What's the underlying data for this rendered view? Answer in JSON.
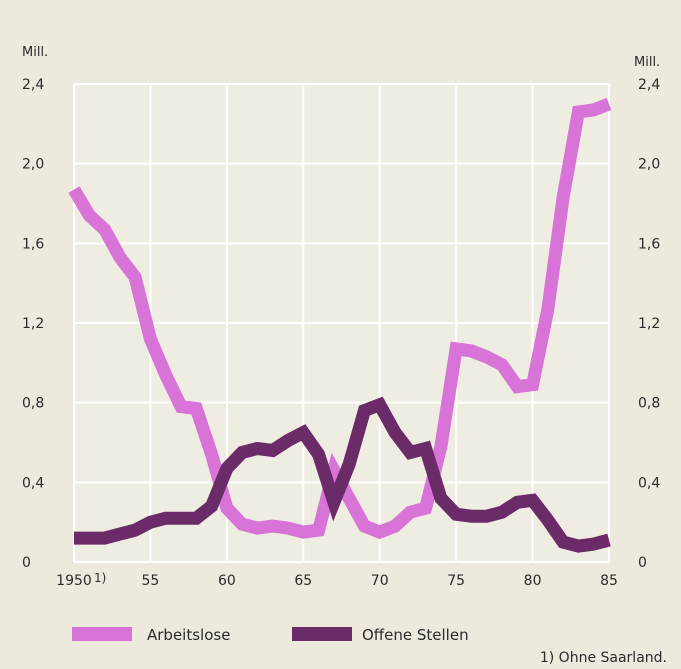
{
  "chart_data": {
    "type": "line",
    "unit_left": "Mill.",
    "unit_right": "Mill.",
    "x_tick_labels": [
      "1950",
      "55",
      "60",
      "65",
      "70",
      "75",
      "80",
      "85"
    ],
    "x_ticks": [
      1950,
      1955,
      1960,
      1965,
      1970,
      1975,
      1980,
      1985
    ],
    "x_first_note": "1)",
    "y_tick_labels": [
      "0",
      "0,4",
      "0,8",
      "1,2",
      "1,6",
      "2,0",
      "2,4"
    ],
    "y_ticks": [
      0,
      0.4,
      0.8,
      1.2,
      1.6,
      2.0,
      2.4
    ],
    "xlim": [
      1950,
      1985
    ],
    "ylim": [
      0,
      2.4
    ],
    "grid": true,
    "legend_position": "bottom",
    "series": [
      {
        "name": "Arbeitslose",
        "color": "#d873d8",
        "x": [
          1950,
          1951,
          1952,
          1953,
          1954,
          1955,
          1956,
          1957,
          1958,
          1959,
          1960,
          1961,
          1962,
          1963,
          1964,
          1965,
          1966,
          1967,
          1968,
          1969,
          1970,
          1971,
          1972,
          1973,
          1974,
          1975,
          1976,
          1977,
          1978,
          1979,
          1980,
          1981,
          1982,
          1983,
          1984,
          1985
        ],
        "values": [
          1.87,
          1.74,
          1.67,
          1.53,
          1.43,
          1.12,
          0.94,
          0.78,
          0.77,
          0.54,
          0.27,
          0.19,
          0.17,
          0.18,
          0.17,
          0.15,
          0.16,
          0.46,
          0.32,
          0.18,
          0.15,
          0.18,
          0.25,
          0.27,
          0.58,
          1.07,
          1.06,
          1.03,
          0.99,
          0.88,
          0.89,
          1.27,
          1.83,
          2.26,
          2.27,
          2.3
        ]
      },
      {
        "name": "Offene Stellen",
        "color": "#6b2a68",
        "x": [
          1950,
          1951,
          1952,
          1953,
          1954,
          1955,
          1956,
          1957,
          1958,
          1959,
          1960,
          1961,
          1962,
          1963,
          1964,
          1965,
          1966,
          1967,
          1968,
          1969,
          1970,
          1971,
          1972,
          1973,
          1974,
          1975,
          1976,
          1977,
          1978,
          1979,
          1980,
          1981,
          1982,
          1983,
          1984,
          1985
        ],
        "values": [
          0.12,
          0.12,
          0.12,
          0.14,
          0.16,
          0.2,
          0.22,
          0.22,
          0.22,
          0.28,
          0.47,
          0.55,
          0.57,
          0.56,
          0.61,
          0.65,
          0.54,
          0.3,
          0.49,
          0.76,
          0.79,
          0.65,
          0.55,
          0.57,
          0.32,
          0.24,
          0.23,
          0.23,
          0.25,
          0.3,
          0.31,
          0.21,
          0.1,
          0.08,
          0.09,
          0.11
        ]
      }
    ],
    "footnote": "1) Ohne Saarland."
  }
}
